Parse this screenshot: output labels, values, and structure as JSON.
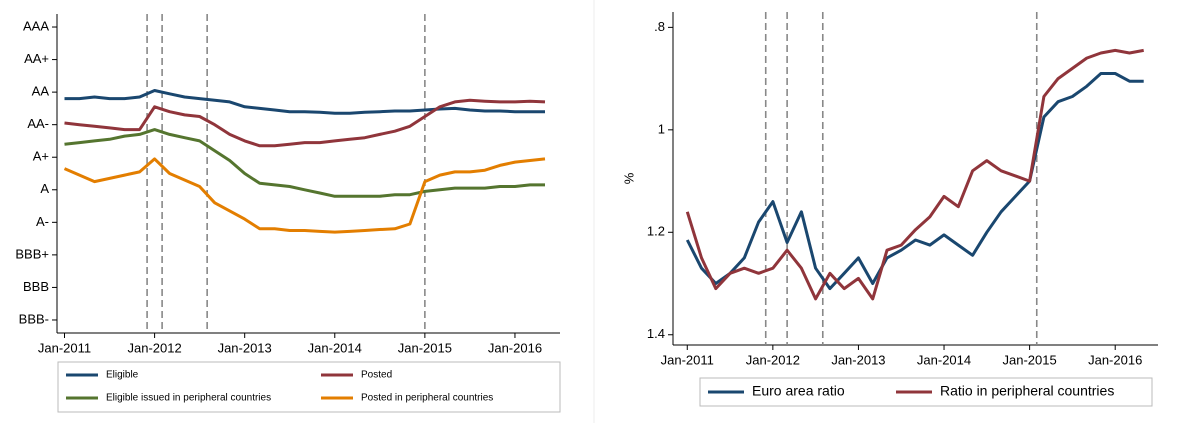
{
  "chart_data": [
    {
      "type": "line",
      "x": [
        "2011-01",
        "2011-03",
        "2011-05",
        "2011-07",
        "2011-09",
        "2011-11",
        "2012-01",
        "2012-03",
        "2012-05",
        "2012-07",
        "2012-09",
        "2012-11",
        "2013-01",
        "2013-03",
        "2013-05",
        "2013-07",
        "2013-09",
        "2013-11",
        "2014-01",
        "2014-03",
        "2014-05",
        "2014-07",
        "2014-09",
        "2014-11",
        "2015-01",
        "2015-03",
        "2015-05",
        "2015-07",
        "2015-09",
        "2015-11",
        "2016-01",
        "2016-03",
        "2016-05"
      ],
      "series": [
        {
          "name": "Eligible",
          "color": "#1a476f",
          "values": [
            7.8,
            7.8,
            7.85,
            7.8,
            7.8,
            7.85,
            8.05,
            7.95,
            7.85,
            7.8,
            7.75,
            7.7,
            7.55,
            7.5,
            7.45,
            7.4,
            7.4,
            7.38,
            7.35,
            7.35,
            7.38,
            7.4,
            7.42,
            7.42,
            7.45,
            7.48,
            7.5,
            7.45,
            7.42,
            7.42,
            7.4,
            7.4,
            7.4
          ]
        },
        {
          "name": "Posted",
          "color": "#90353b",
          "values": [
            7.05,
            7.0,
            6.95,
            6.9,
            6.85,
            6.85,
            7.55,
            7.4,
            7.3,
            7.25,
            7.0,
            6.7,
            6.5,
            6.35,
            6.35,
            6.4,
            6.45,
            6.45,
            6.5,
            6.55,
            6.6,
            6.7,
            6.8,
            6.95,
            7.25,
            7.55,
            7.7,
            7.75,
            7.72,
            7.7,
            7.7,
            7.72,
            7.7
          ]
        },
        {
          "name": "Eligible issued in peripheral countries",
          "color": "#55752f",
          "values": [
            6.4,
            6.45,
            6.5,
            6.55,
            6.65,
            6.7,
            6.85,
            6.7,
            6.6,
            6.5,
            6.2,
            5.9,
            5.5,
            5.2,
            5.15,
            5.1,
            5.0,
            4.9,
            4.8,
            4.8,
            4.8,
            4.8,
            4.85,
            4.85,
            4.95,
            5.0,
            5.05,
            5.05,
            5.05,
            5.1,
            5.1,
            5.15,
            5.15
          ]
        },
        {
          "name": "Posted in peripheral countries",
          "color": "#e37e00",
          "values": [
            5.65,
            5.45,
            5.25,
            5.35,
            5.45,
            5.55,
            5.95,
            5.5,
            5.3,
            5.1,
            4.6,
            4.35,
            4.1,
            3.8,
            3.8,
            3.75,
            3.75,
            3.72,
            3.7,
            3.72,
            3.75,
            3.78,
            3.8,
            3.95,
            5.25,
            5.45,
            5.55,
            5.55,
            5.6,
            5.75,
            5.85,
            5.9,
            5.95
          ]
        }
      ],
      "xlim": [
        "2010-12",
        "2016-07"
      ],
      "xticks": [
        {
          "value": "2011-01",
          "label": "Jan-2011"
        },
        {
          "value": "2012-01",
          "label": "Jan-2012"
        },
        {
          "value": "2013-01",
          "label": "Jan-2013"
        },
        {
          "value": "2014-01",
          "label": "Jan-2014"
        },
        {
          "value": "2015-01",
          "label": "Jan-2015"
        },
        {
          "value": "2016-01",
          "label": "Jan-2016"
        }
      ],
      "ylim": [
        0.6,
        10.4
      ],
      "yticks": [
        {
          "value": 1,
          "label": "BBB-"
        },
        {
          "value": 2,
          "label": "BBB"
        },
        {
          "value": 3,
          "label": "BBB+"
        },
        {
          "value": 4,
          "label": "A-"
        },
        {
          "value": 5,
          "label": "A"
        },
        {
          "value": 6,
          "label": "A+"
        },
        {
          "value": 7,
          "label": "AA-"
        },
        {
          "value": 8,
          "label": "AA"
        },
        {
          "value": 9,
          "label": "AA+"
        },
        {
          "value": 10,
          "label": "AAA"
        }
      ],
      "vlines": [
        "2011-12",
        "2012-02",
        "2012-08",
        "2015-01"
      ],
      "legend": "bottom"
    },
    {
      "type": "line",
      "x": [
        "2011-01",
        "2011-03",
        "2011-05",
        "2011-07",
        "2011-09",
        "2011-11",
        "2012-01",
        "2012-03",
        "2012-05",
        "2012-07",
        "2012-09",
        "2012-11",
        "2013-01",
        "2013-03",
        "2013-05",
        "2013-07",
        "2013-09",
        "2013-11",
        "2014-01",
        "2014-03",
        "2014-05",
        "2014-07",
        "2014-09",
        "2014-11",
        "2015-01",
        "2015-03",
        "2015-05",
        "2015-07",
        "2015-09",
        "2015-11",
        "2016-01",
        "2016-03",
        "2016-05"
      ],
      "y_label": "%",
      "series": [
        {
          "name": "Euro area ratio",
          "color": "#1a476f",
          "values": [
            1.215,
            1.27,
            1.3,
            1.28,
            1.25,
            1.18,
            1.14,
            1.22,
            1.16,
            1.27,
            1.31,
            1.28,
            1.25,
            1.3,
            1.25,
            1.235,
            1.215,
            1.225,
            1.205,
            1.225,
            1.245,
            1.2,
            1.16,
            1.13,
            1.1,
            0.975,
            0.945,
            0.935,
            0.915,
            0.89,
            0.89,
            0.905,
            0.905
          ]
        },
        {
          "name": "Ratio in peripheral countries",
          "color": "#90353b",
          "values": [
            1.16,
            1.25,
            1.31,
            1.28,
            1.27,
            1.28,
            1.27,
            1.235,
            1.27,
            1.33,
            1.28,
            1.31,
            1.29,
            1.33,
            1.235,
            1.225,
            1.195,
            1.17,
            1.13,
            1.15,
            1.08,
            1.06,
            1.08,
            1.09,
            1.1,
            0.935,
            0.9,
            0.88,
            0.86,
            0.85,
            0.845,
            0.85,
            0.845
          ]
        }
      ],
      "xlim": [
        "2010-11",
        "2016-07"
      ],
      "xticks": [
        {
          "value": "2011-01",
          "label": "Jan-2011"
        },
        {
          "value": "2012-01",
          "label": "Jan-2012"
        },
        {
          "value": "2013-01",
          "label": "Jan-2013"
        },
        {
          "value": "2014-01",
          "label": "Jan-2014"
        },
        {
          "value": "2015-01",
          "label": "Jan-2015"
        },
        {
          "value": "2016-01",
          "label": "Jan-2016"
        }
      ],
      "ylim": [
        0.77,
        1.42
      ],
      "y_reversed": true,
      "yticks": [
        {
          "value": 0.8,
          "label": ".8"
        },
        1,
        1.2,
        1.4
      ],
      "vlines": [
        "2011-12",
        "2012-03",
        "2012-08",
        "2015-02"
      ],
      "legend": "bottom"
    }
  ]
}
